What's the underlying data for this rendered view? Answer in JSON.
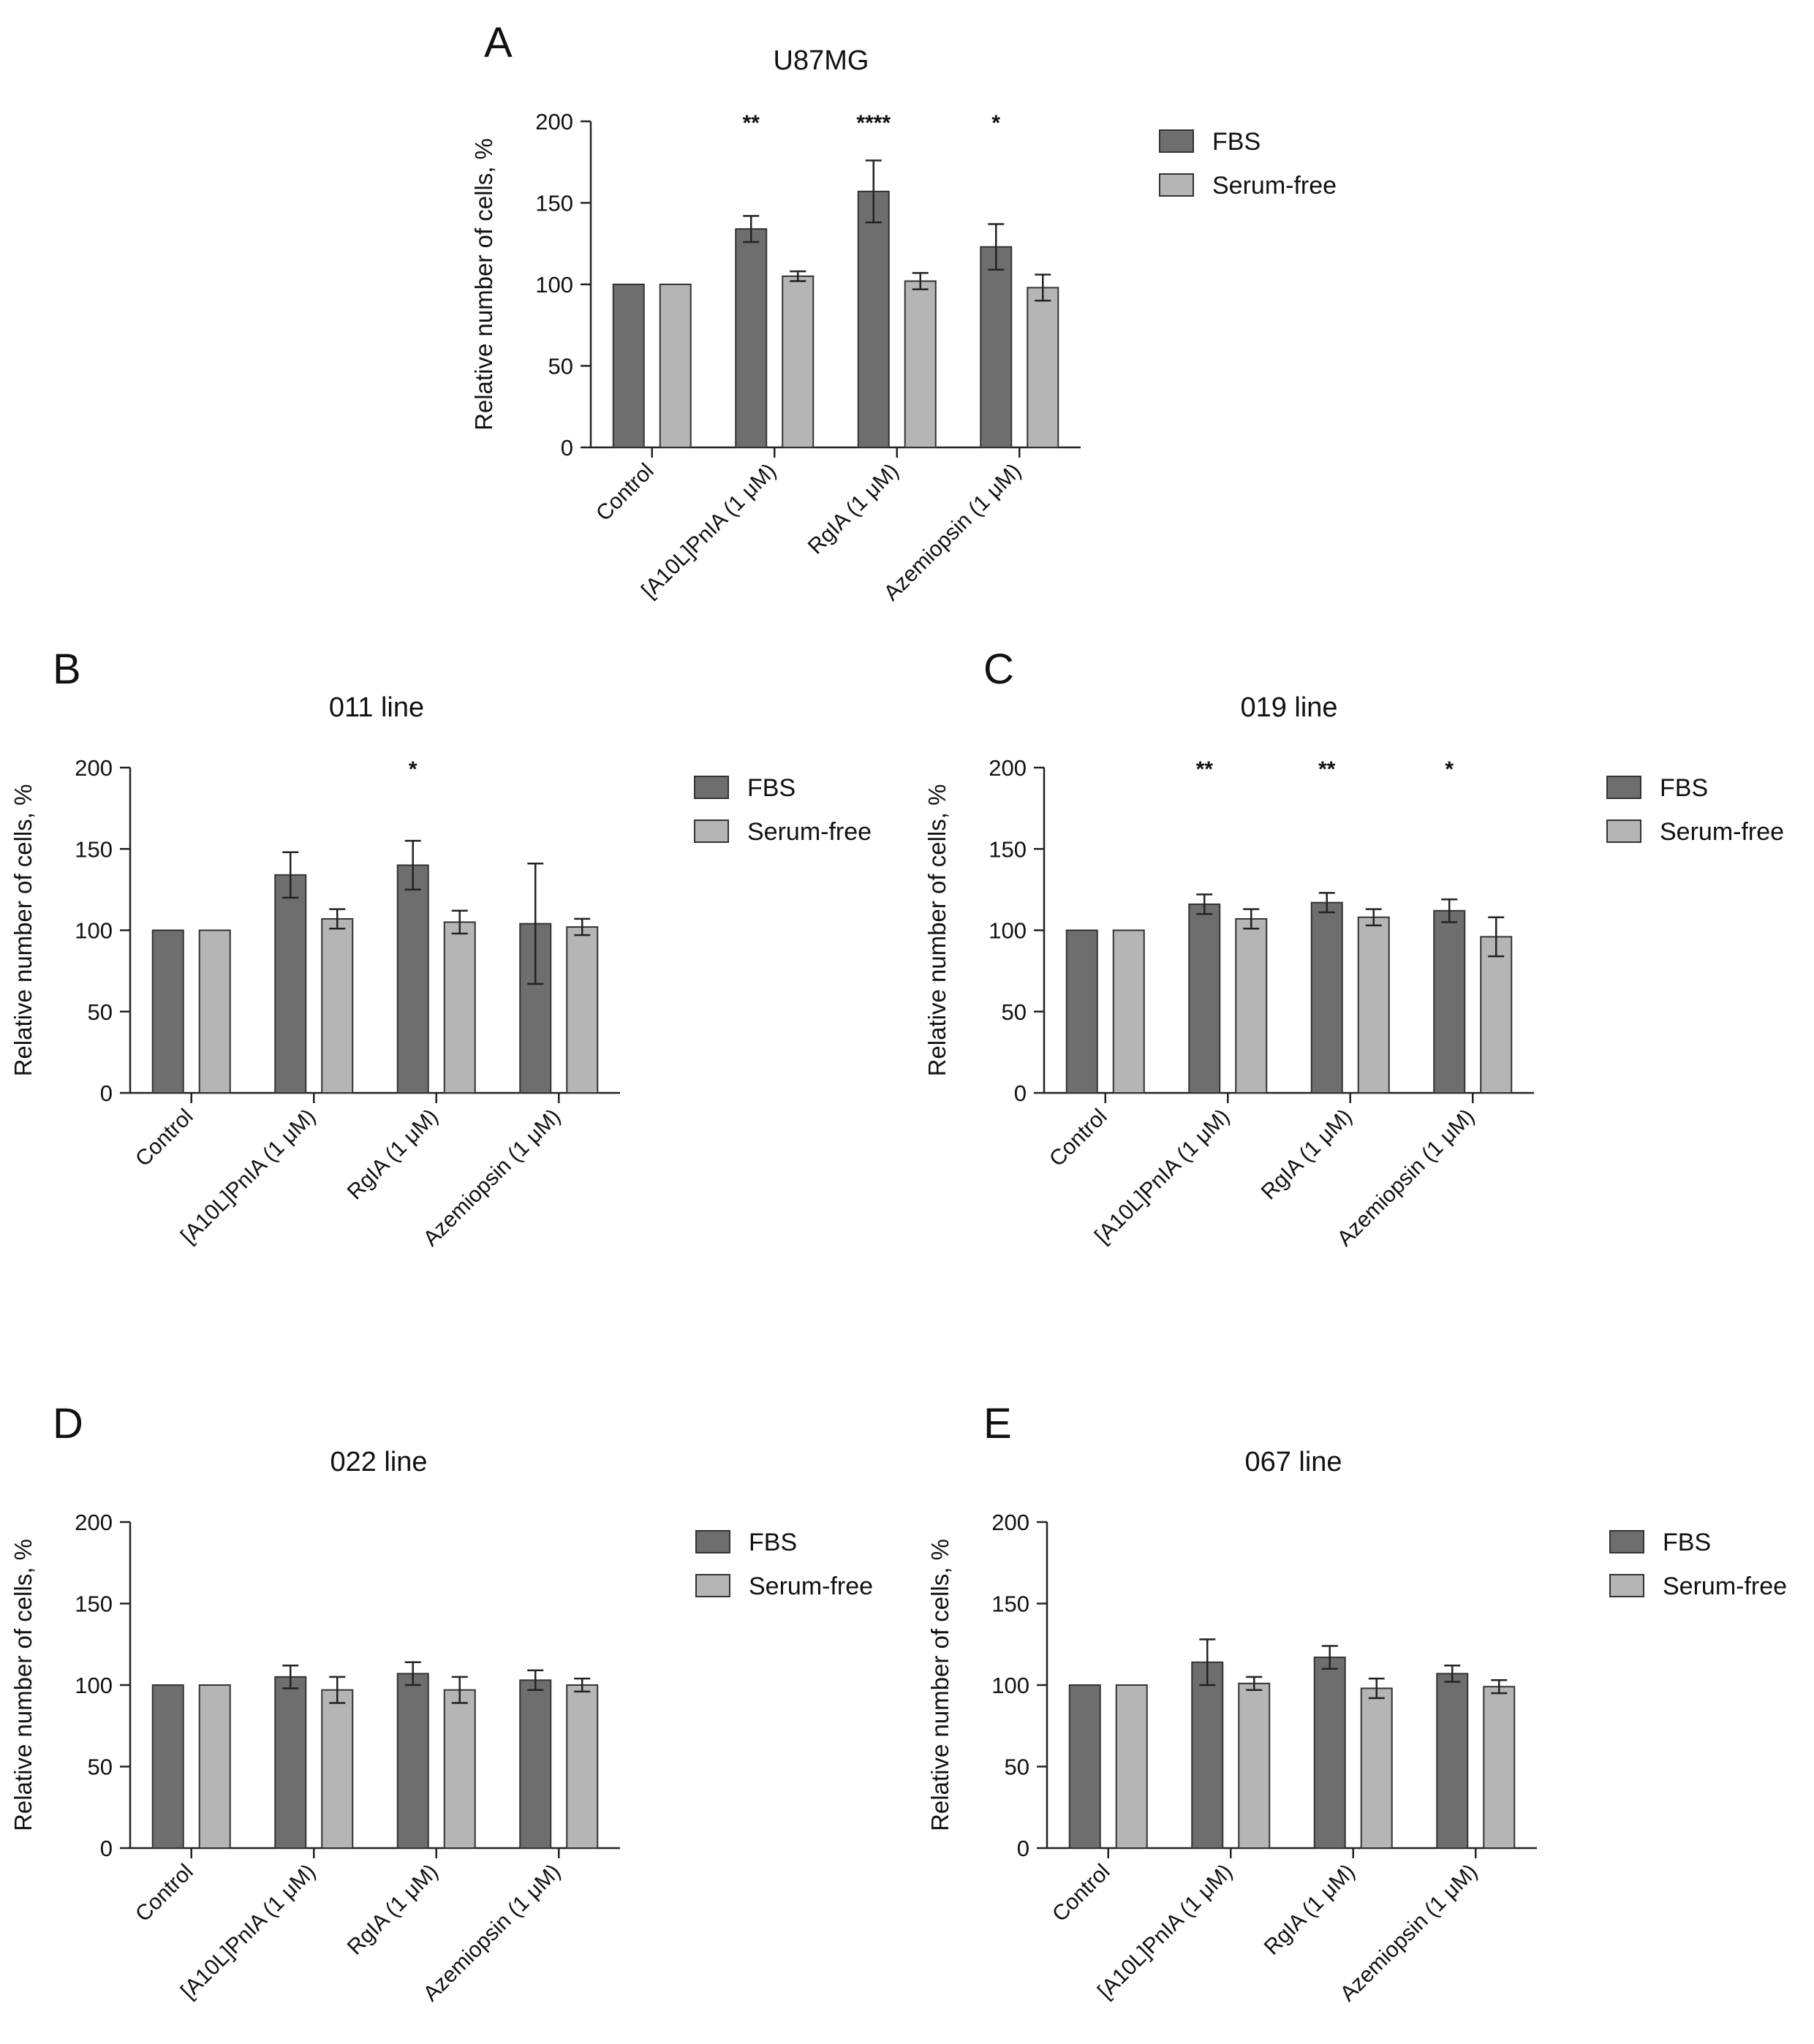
{
  "colors": {
    "fbs": "#6e6e6e",
    "serum_free": "#b5b5b5",
    "stroke": "#333333",
    "axis": "#222222"
  },
  "chart_data": [
    {
      "type": "bar",
      "panel": "A",
      "title": "U87MG",
      "xlabel": "",
      "ylabel": "Relative number of cells, %",
      "ylim": [
        0,
        200
      ],
      "yticks": [
        0,
        50,
        100,
        150,
        200
      ],
      "categories": [
        "Control",
        "[A10L]PnIA (1 μM)",
        "RgIA (1 μM)",
        "Azemiopsin (1 μM)"
      ],
      "series": [
        {
          "name": "FBS",
          "values": [
            100,
            134,
            157,
            123
          ],
          "errors": [
            0,
            8,
            19,
            14
          ]
        },
        {
          "name": "Serum-free",
          "values": [
            100,
            105,
            102,
            98
          ],
          "errors": [
            0,
            3,
            5,
            8
          ]
        }
      ],
      "significance": [
        "",
        "**",
        "****",
        "*"
      ],
      "legend": [
        "FBS",
        "Serum-free"
      ],
      "legend_position": "right"
    },
    {
      "type": "bar",
      "panel": "B",
      "title": "011 line",
      "xlabel": "",
      "ylabel": "Relative number of cells, %",
      "ylim": [
        0,
        200
      ],
      "yticks": [
        0,
        50,
        100,
        150,
        200
      ],
      "categories": [
        "Control",
        "[A10L]PnIA (1 μM)",
        "RgIA (1 μM)",
        "Azemiopsin (1 μM)"
      ],
      "series": [
        {
          "name": "FBS",
          "values": [
            100,
            134,
            140,
            104
          ],
          "errors": [
            0,
            14,
            15,
            37
          ]
        },
        {
          "name": "Serum-free",
          "values": [
            100,
            107,
            105,
            102
          ],
          "errors": [
            0,
            6,
            7,
            5
          ]
        }
      ],
      "significance": [
        "",
        "",
        "*",
        ""
      ],
      "legend": [
        "FBS",
        "Serum-free"
      ],
      "legend_position": "right"
    },
    {
      "type": "bar",
      "panel": "C",
      "title": "019 line",
      "xlabel": "",
      "ylabel": "Relative number of cells, %",
      "ylim": [
        0,
        200
      ],
      "yticks": [
        0,
        50,
        100,
        150,
        200
      ],
      "categories": [
        "Control",
        "[A10L]PnIA (1 μM)",
        "RgIA (1 μM)",
        "Azemiopsin (1 μM)"
      ],
      "series": [
        {
          "name": "FBS",
          "values": [
            100,
            116,
            117,
            112
          ],
          "errors": [
            0,
            6,
            6,
            7
          ]
        },
        {
          "name": "Serum-free",
          "values": [
            100,
            107,
            108,
            96
          ],
          "errors": [
            0,
            6,
            5,
            12
          ]
        }
      ],
      "significance": [
        "",
        "**",
        "**",
        "*"
      ],
      "legend": [
        "FBS",
        "Serum-free"
      ],
      "legend_position": "right"
    },
    {
      "type": "bar",
      "panel": "D",
      "title": "022 line",
      "xlabel": "",
      "ylabel": "Relative number of cells, %",
      "ylim": [
        0,
        200
      ],
      "yticks": [
        0,
        50,
        100,
        150,
        200
      ],
      "categories": [
        "Control",
        "[A10L]PnIA (1 μM)",
        "RgIA (1 μM)",
        "Azemiopsin (1 μM)"
      ],
      "series": [
        {
          "name": "FBS",
          "values": [
            100,
            105,
            107,
            103
          ],
          "errors": [
            0,
            7,
            7,
            6
          ]
        },
        {
          "name": "Serum-free",
          "values": [
            100,
            97,
            97,
            100
          ],
          "errors": [
            0,
            8,
            8,
            4
          ]
        }
      ],
      "significance": [
        "",
        "",
        "",
        ""
      ],
      "legend": [
        "FBS",
        "Serum-free"
      ],
      "legend_position": "right"
    },
    {
      "type": "bar",
      "panel": "E",
      "title": "067 line",
      "xlabel": "",
      "ylabel": "Relative number of cells, %",
      "ylim": [
        0,
        200
      ],
      "yticks": [
        0,
        50,
        100,
        150,
        200
      ],
      "categories": [
        "Control",
        "[A10L]PnIA (1 μM)",
        "RgIA (1 μM)",
        "Azemiopsin (1 μM)"
      ],
      "series": [
        {
          "name": "FBS",
          "values": [
            100,
            114,
            117,
            107
          ],
          "errors": [
            0,
            14,
            7,
            5
          ]
        },
        {
          "name": "Serum-free",
          "values": [
            100,
            101,
            98,
            99
          ],
          "errors": [
            0,
            4,
            6,
            4
          ]
        }
      ],
      "significance": [
        "",
        "",
        "",
        ""
      ],
      "legend": [
        "FBS",
        "Serum-free"
      ],
      "legend_position": "right"
    }
  ]
}
